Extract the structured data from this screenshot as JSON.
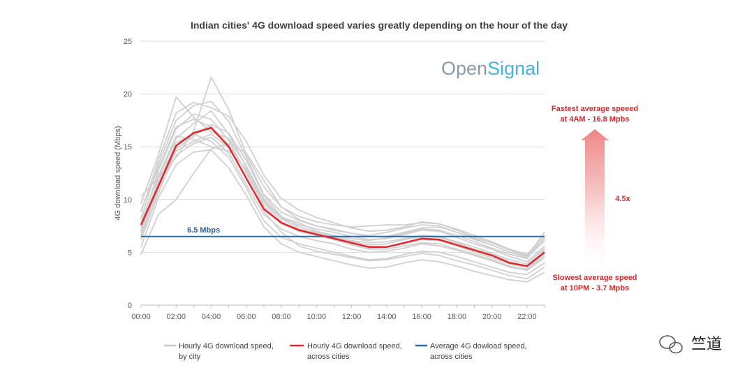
{
  "chart_data": {
    "type": "line",
    "title": "Indian cities' 4G download speed varies greatly depending on the hour of the day",
    "ylabel": "4G download speed (Mbps)",
    "xlabel": "",
    "ylim": [
      0,
      25
    ],
    "yticks": [
      0,
      5,
      10,
      15,
      20,
      25
    ],
    "x": [
      0,
      1,
      2,
      3,
      4,
      5,
      6,
      7,
      8,
      9,
      10,
      11,
      12,
      13,
      14,
      15,
      16,
      17,
      18,
      19,
      20,
      21,
      22,
      23
    ],
    "xtick_labels": [
      "00:00",
      "02:00",
      "04:00",
      "06:00",
      "08:00",
      "10:00",
      "12:00",
      "14:00",
      "16:00",
      "18:00",
      "20:00",
      "22:00"
    ],
    "grid": true,
    "series": [
      {
        "name": "Hourly 4G download speed, across cities",
        "color": "#e0282c",
        "values": [
          7.6,
          11.3,
          15.1,
          16.3,
          16.8,
          15.0,
          12.0,
          9.1,
          7.8,
          7.1,
          6.7,
          6.3,
          5.9,
          5.5,
          5.5,
          5.9,
          6.3,
          6.2,
          5.7,
          5.2,
          4.7,
          4.0,
          3.7,
          5.0
        ]
      },
      {
        "name": "Average 4G dowload speed, across cities",
        "color": "#2e6aa3",
        "constant": 6.5
      }
    ],
    "city_series": [
      [
        7.1,
        12.0,
        15.8,
        17.2,
        18.4,
        16.2,
        13.1,
        9.8,
        8.2,
        7.6,
        7.2,
        6.9,
        6.5,
        6.2,
        6.3,
        6.7,
        7.1,
        7.0,
        6.4,
        5.8,
        5.3,
        4.6,
        4.1,
        5.6
      ],
      [
        8.2,
        13.4,
        17.5,
        18.9,
        19.3,
        17.4,
        14.0,
        10.5,
        8.8,
        8.0,
        7.5,
        7.1,
        6.8,
        6.6,
        6.9,
        7.3,
        7.6,
        7.5,
        6.9,
        6.2,
        5.7,
        5.0,
        4.5,
        6.1
      ],
      [
        6.5,
        11.0,
        14.2,
        15.3,
        15.9,
        14.4,
        11.4,
        8.6,
        7.2,
        6.5,
        6.1,
        5.8,
        5.3,
        5.0,
        5.1,
        5.4,
        5.8,
        5.6,
        5.2,
        4.7,
        4.2,
        3.6,
        3.3,
        4.5
      ],
      [
        9.6,
        14.3,
        19.7,
        17.8,
        16.4,
        15.8,
        13.2,
        10.0,
        8.3,
        7.8,
        7.0,
        6.6,
        6.3,
        6.1,
        6.4,
        6.8,
        7.2,
        7.1,
        6.6,
        6.0,
        5.4,
        4.8,
        4.4,
        6.4
      ],
      [
        4.8,
        8.6,
        10.0,
        12.5,
        14.8,
        15.3,
        14.4,
        11.8,
        9.3,
        8.1,
        7.5,
        7.2,
        6.8,
        6.5,
        6.5,
        6.9,
        7.3,
        7.4,
        6.9,
        6.3,
        5.7,
        5.0,
        4.6,
        6.9
      ],
      [
        10.3,
        12.1,
        14.0,
        16.5,
        21.6,
        18.5,
        14.3,
        11.2,
        9.3,
        8.4,
        7.9,
        7.6,
        7.4,
        7.5,
        7.6,
        7.6,
        7.8,
        7.7,
        7.2,
        6.6,
        6.0,
        5.3,
        4.8,
        6.6
      ],
      [
        7.4,
        12.8,
        16.7,
        18.1,
        17.6,
        15.6,
        12.5,
        9.4,
        7.7,
        7.0,
        6.6,
        6.2,
        5.7,
        5.3,
        5.3,
        5.6,
        5.9,
        5.8,
        5.3,
        4.8,
        4.3,
        3.7,
        3.4,
        4.7
      ],
      [
        6.8,
        11.6,
        15.4,
        16.2,
        15.5,
        14.0,
        11.1,
        8.0,
        6.4,
        5.8,
        5.4,
        5.0,
        4.6,
        4.3,
        4.4,
        4.8,
        5.1,
        5.0,
        4.6,
        4.1,
        3.6,
        3.1,
        2.9,
        4.0
      ],
      [
        5.5,
        10.2,
        13.3,
        14.5,
        14.7,
        13.0,
        10.4,
        7.4,
        5.8,
        5.0,
        4.6,
        4.2,
        3.8,
        3.5,
        3.6,
        4.0,
        4.3,
        4.1,
        3.7,
        3.2,
        2.8,
        2.4,
        2.2,
        3.1
      ],
      [
        8.8,
        13.8,
        18.2,
        19.2,
        18.7,
        17.9,
        15.5,
        12.3,
        10.1,
        9.0,
        8.3,
        7.8,
        7.3,
        7.0,
        7.1,
        7.4,
        7.9,
        7.7,
        7.1,
        6.4,
        5.9,
        5.2,
        4.7,
        6.3
      ],
      [
        7.9,
        12.3,
        16.0,
        15.7,
        15.0,
        14.6,
        12.9,
        10.1,
        8.2,
        7.2,
        6.8,
        6.4,
        6.0,
        5.7,
        5.8,
        6.2,
        6.5,
        6.4,
        5.9,
        5.3,
        4.8,
        4.1,
        3.7,
        5.2
      ],
      [
        6.2,
        10.6,
        14.8,
        16.0,
        17.1,
        16.3,
        13.7,
        10.4,
        8.4,
        7.4,
        6.9,
        6.5,
        6.1,
        5.9,
        6.0,
        6.3,
        6.6,
        6.5,
        6.0,
        5.5,
        4.9,
        4.3,
        3.9,
        5.4
      ],
      [
        7.0,
        11.3,
        14.6,
        15.5,
        16.2,
        14.9,
        12.1,
        8.9,
        6.9,
        5.6,
        5.1,
        4.8,
        4.5,
        4.2,
        4.3,
        4.6,
        4.9,
        4.7,
        4.2,
        3.8,
        3.3,
        2.8,
        2.5,
        3.6
      ],
      [
        9.0,
        13.0,
        16.9,
        17.6,
        16.9,
        15.2,
        12.7,
        9.7,
        7.9,
        7.1,
        6.7,
        6.3,
        5.8,
        5.4,
        5.5,
        5.8,
        6.2,
        6.1,
        5.6,
        5.0,
        4.5,
        3.9,
        3.6,
        4.9
      ]
    ],
    "legend": [
      {
        "line1": "Hourly 4G download speed,",
        "line2": "by city",
        "color": "#c8c8c8"
      },
      {
        "line1": "Hourly 4G download speed,",
        "line2": "across cities",
        "color": "#e0282c"
      },
      {
        "line1": "Average 4G dowload speed,",
        "line2": "across cities",
        "color": "#2e6aa3"
      }
    ],
    "legend_position": "bottom",
    "annotations": {
      "avg_label": "6.5 Mbps",
      "fastest_line1": "Fastest average speeed",
      "fastest_line2": "at 4AM - 16.8 Mpbs",
      "ratio": "4.5x",
      "slowest_line1": "Slowest average speed",
      "slowest_line2": "at 10PM - 3.7 Mpbs"
    },
    "brand": {
      "part1": "Open",
      "part2": "Signal"
    }
  },
  "watermark": {
    "text": "竺道"
  },
  "colors": {
    "grid": "#d9d9d9",
    "city_line": "#d0d0d0",
    "arrow": "#f19a9a"
  }
}
